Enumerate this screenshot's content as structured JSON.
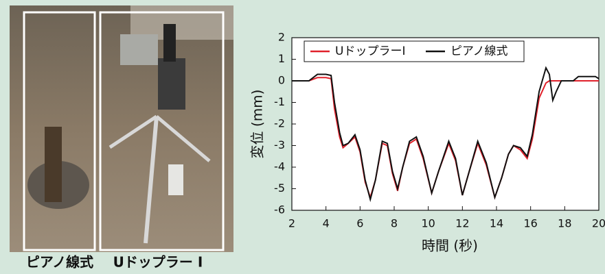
{
  "photo": {
    "captions": [
      "ピアノ線式",
      "Uドップラー I"
    ]
  },
  "chart_data": {
    "type": "line",
    "x_label": "時間 (秒)",
    "y_label": "変位 (mm)",
    "xlim": [
      2,
      20
    ],
    "ylim": [
      -6,
      2
    ],
    "xticks": [
      2,
      4,
      6,
      8,
      10,
      12,
      14,
      16,
      18,
      20
    ],
    "yticks": [
      2,
      1,
      0,
      -1,
      -2,
      -3,
      -4,
      -5,
      -6
    ],
    "legend": "top",
    "x": [
      2,
      3,
      3.5,
      4,
      4.3,
      4.5,
      4.8,
      5,
      5.3,
      5.7,
      6,
      6.3,
      6.6,
      6.9,
      7.3,
      7.6,
      7.9,
      8.2,
      8.5,
      8.9,
      9.3,
      9.7,
      10.2,
      10.6,
      11.2,
      11.6,
      12.0,
      12.4,
      12.9,
      13.4,
      13.9,
      14.3,
      14.7,
      15.0,
      15.4,
      15.8,
      16.1,
      16.5,
      16.9,
      17.1,
      17.3,
      17.5,
      17.8,
      18.5,
      18.8,
      19.8,
      20
    ],
    "series": [
      {
        "name": "UドップラーI",
        "color": "#e0202a",
        "values": [
          0,
          0,
          0.15,
          0.15,
          0.1,
          -1.3,
          -2.6,
          -3.1,
          -2.9,
          -2.6,
          -3.3,
          -4.7,
          -5.4,
          -4.6,
          -2.9,
          -3.0,
          -4.3,
          -5.1,
          -4.0,
          -2.9,
          -2.7,
          -3.6,
          -5.2,
          -4.2,
          -2.9,
          -3.7,
          -5.3,
          -4.2,
          -2.9,
          -3.9,
          -5.4,
          -4.5,
          -3.4,
          -3.0,
          -3.2,
          -3.6,
          -2.7,
          -0.8,
          -0.1,
          0,
          0,
          0,
          0,
          0,
          0,
          0,
          0
        ]
      },
      {
        "name": "ピアノ線式",
        "color": "#111111",
        "values": [
          0,
          0,
          0.3,
          0.3,
          0.25,
          -1,
          -2.4,
          -3,
          -2.9,
          -2.5,
          -3.2,
          -4.6,
          -5.5,
          -4.6,
          -2.8,
          -2.9,
          -4.2,
          -5.0,
          -4.0,
          -2.8,
          -2.6,
          -3.5,
          -5.2,
          -4.2,
          -2.8,
          -3.6,
          -5.3,
          -4.2,
          -2.8,
          -3.8,
          -5.4,
          -4.5,
          -3.4,
          -3.0,
          -3.1,
          -3.5,
          -2.5,
          -0.5,
          0.6,
          0.3,
          -0.9,
          -0.5,
          0,
          0,
          0.2,
          0.2,
          0.1
        ]
      }
    ]
  }
}
